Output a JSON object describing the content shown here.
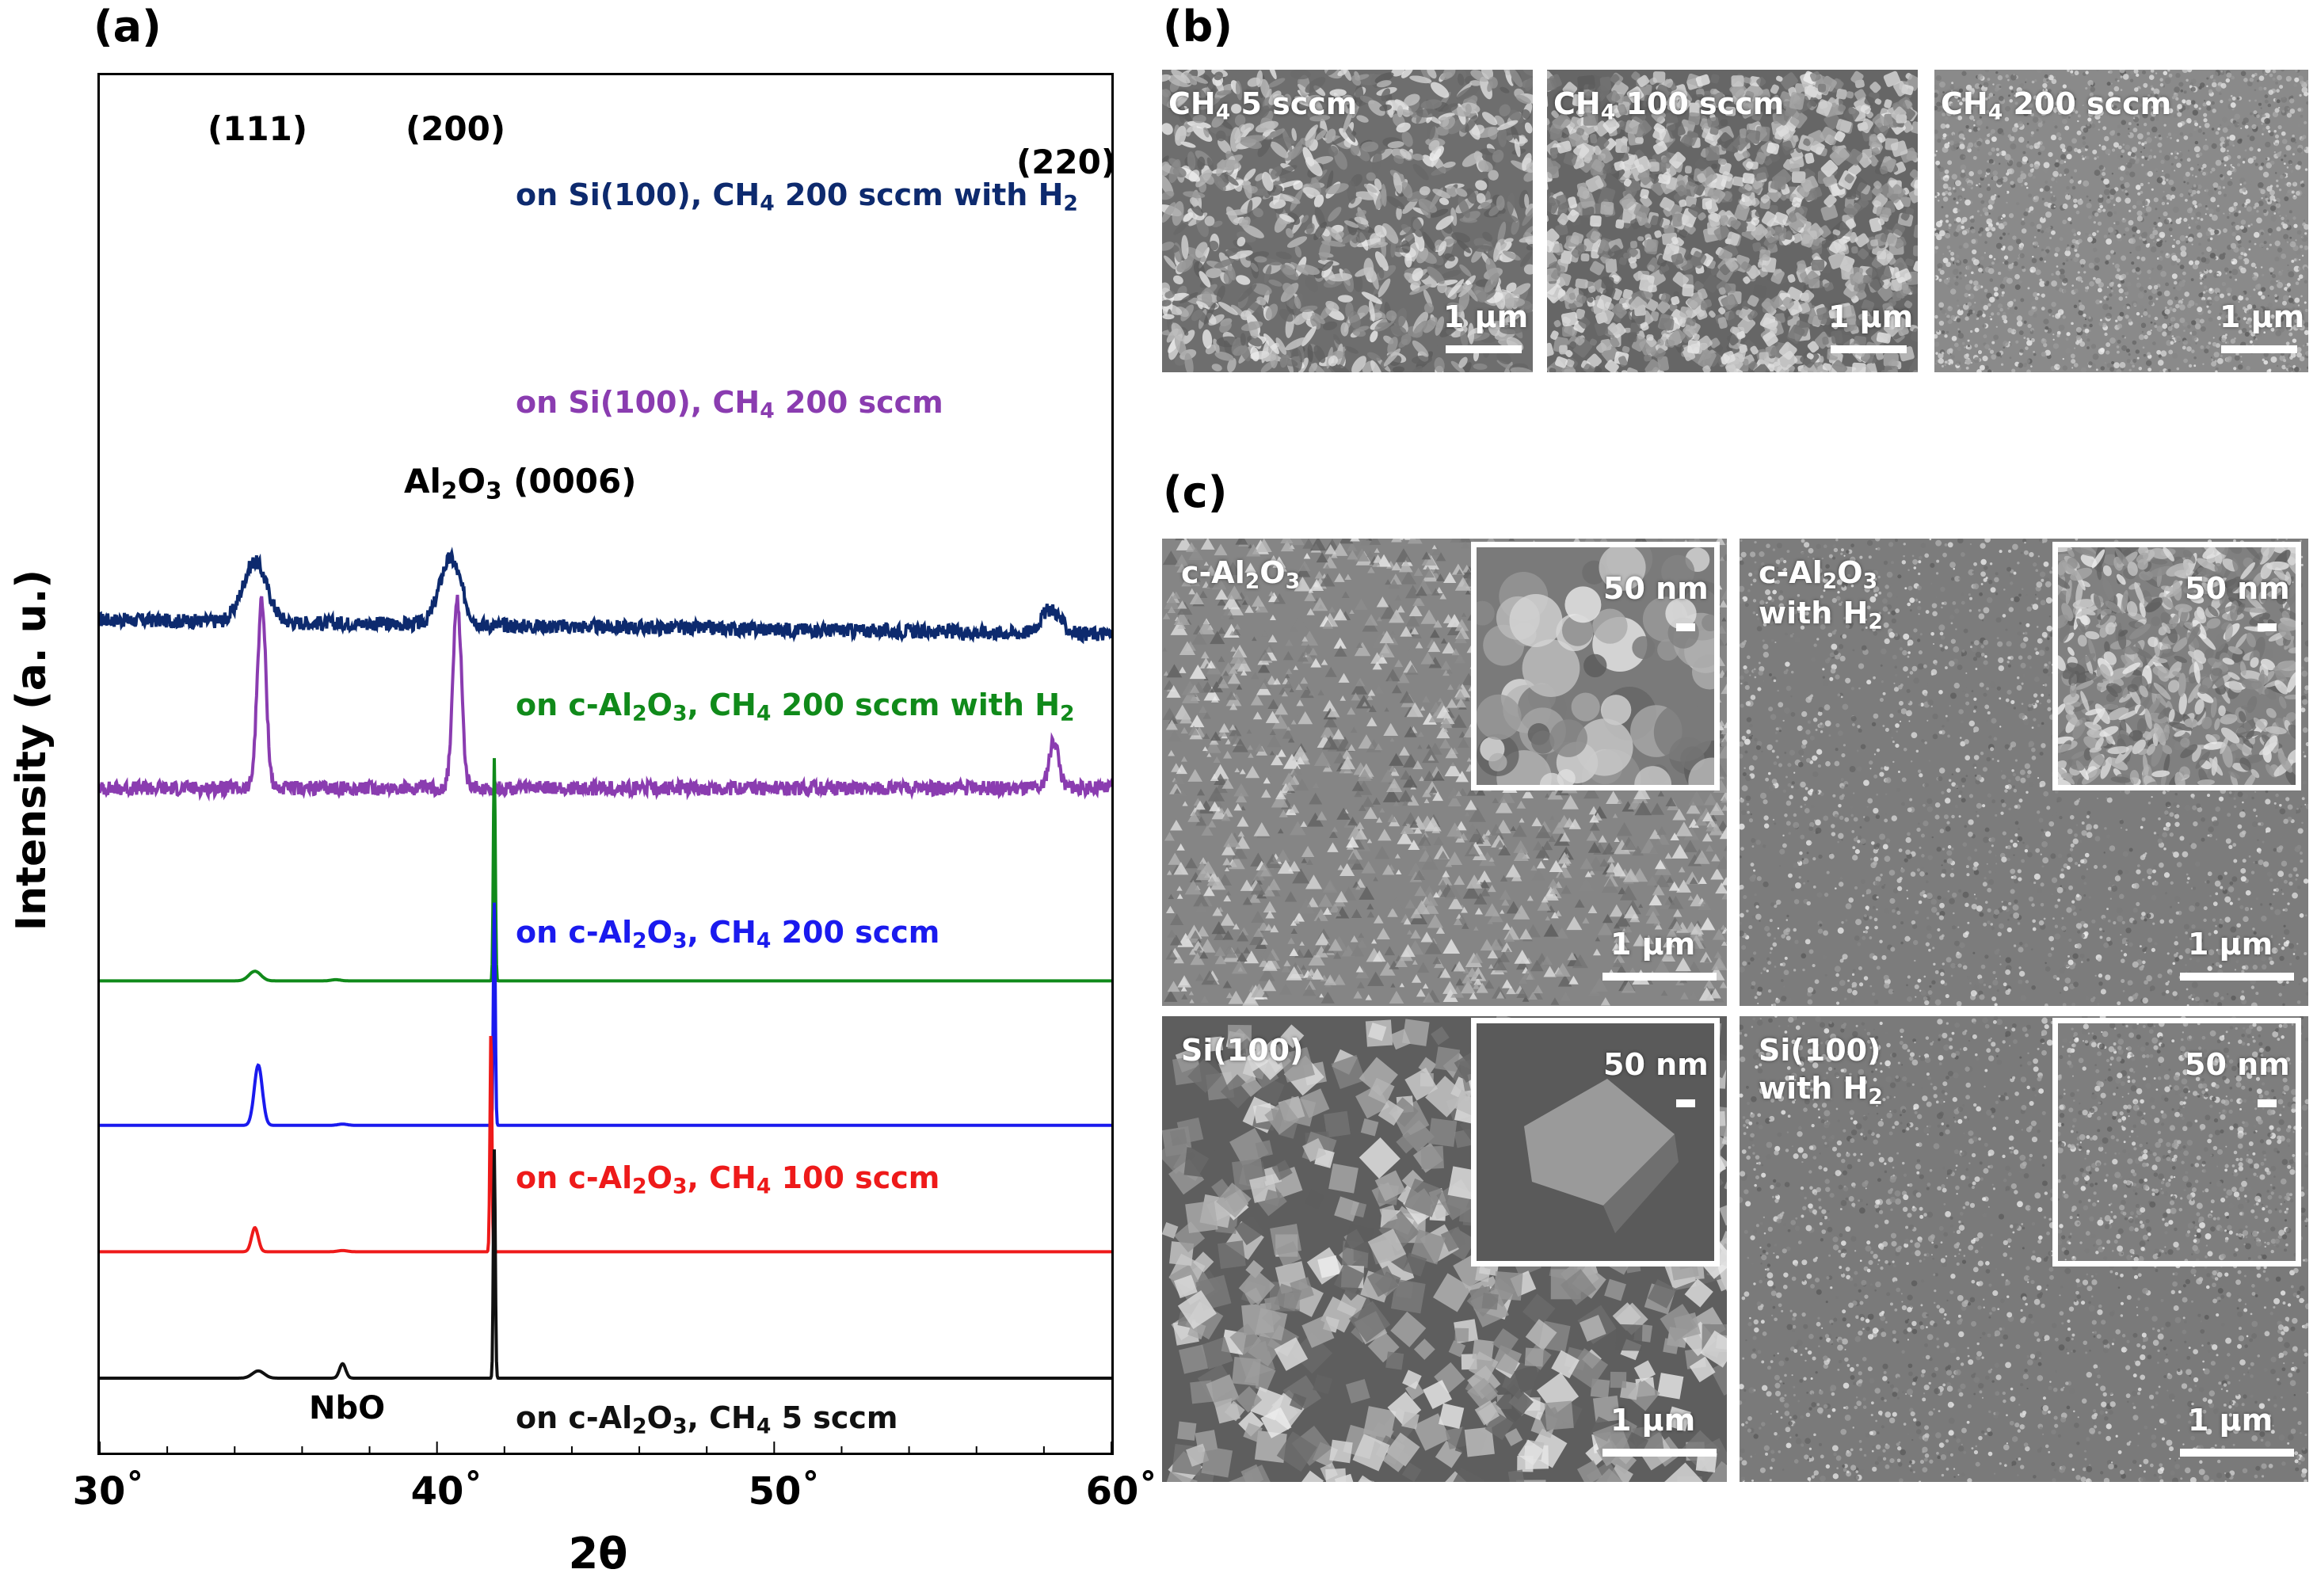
{
  "panels": {
    "a_label": "(a)",
    "b_label": "(b)",
    "c_label": "(c)"
  },
  "xrd": {
    "ylabel": "Intensity (a. u.)",
    "xlabel": "2θ",
    "xticks": [
      "30˚",
      "40˚",
      "50˚",
      "60˚"
    ],
    "peak_labels": {
      "p111": "(111)",
      "p200": "(200)",
      "p220": "(220)",
      "al2o3_main": "Al",
      "al2o3_sub1": "2",
      "al2o3_mid": "O",
      "al2o3_sub2": "3",
      "al2o3_end": " (0006)",
      "nbo": "NbO"
    },
    "trace_labels": [
      {
        "pre": "on Si(100), CH",
        "sub": "4",
        "post": " 200 sccm with H",
        "sub2": "2"
      },
      {
        "pre": "on Si(100), CH",
        "sub": "4",
        "post": " 200 sccm",
        "sub2": ""
      },
      {
        "pre": "on c-Al",
        "sub_a": "2",
        "mid": "O",
        "sub_b": "3",
        "mid2": ", CH",
        "sub": "4",
        "post": " 200 sccm with H",
        "sub2": "2"
      },
      {
        "pre": "on c-Al",
        "sub_a": "2",
        "mid": "O",
        "sub_b": "3",
        "mid2": ", CH",
        "sub": "4",
        "post": " 200 sccm",
        "sub2": ""
      },
      {
        "pre": "on c-Al",
        "sub_a": "2",
        "mid": "O",
        "sub_b": "3",
        "mid2": ", CH",
        "sub": "4",
        "post": " 100 sccm",
        "sub2": ""
      },
      {
        "pre": "on c-Al",
        "sub_a": "2",
        "mid": "O",
        "sub_b": "3",
        "mid2": ", CH",
        "sub": "4",
        "post": " 5 sccm",
        "sub2": ""
      }
    ]
  },
  "chart_data": {
    "type": "line",
    "xlabel": "2θ",
    "ylabel": "Intensity (a. u.)",
    "xlim": [
      30,
      60
    ],
    "x_tick_labels": [
      "30˚",
      "40˚",
      "50˚",
      "60˚"
    ],
    "series": [
      {
        "name": "on Si(100), CH4 200 sccm with H2",
        "color": "#0d2a6e",
        "offset": 6.3,
        "noise": 0.06,
        "peaks": [
          {
            "x": 34.6,
            "h": 0.5,
            "w": 0.5
          },
          {
            "x": 40.4,
            "h": 0.55,
            "w": 0.45
          },
          {
            "x": 58.2,
            "h": 0.2,
            "w": 0.4
          }
        ]
      },
      {
        "name": "on Si(100), CH4 200 sccm",
        "color": "#8a3cb0",
        "offset": 4.9,
        "noise": 0.06,
        "peaks": [
          {
            "x": 34.8,
            "h": 1.55,
            "w": 0.18
          },
          {
            "x": 40.6,
            "h": 1.55,
            "w": 0.18
          },
          {
            "x": 58.3,
            "h": 0.4,
            "w": 0.2
          }
        ]
      },
      {
        "name": "on c-Al2O3, CH4 200 sccm with H2",
        "color": "#108a1a",
        "offset": 3.3,
        "noise": 0.0,
        "peaks": [
          {
            "x": 34.6,
            "h": 0.08,
            "w": 0.25
          },
          {
            "x": 41.7,
            "h": 1.85,
            "w": 0.04
          },
          {
            "x": 37.0,
            "h": 0.01,
            "w": 0.2
          }
        ]
      },
      {
        "name": "on c-Al2O3, CH4 200 sccm",
        "color": "#1a1aee",
        "offset": 2.1,
        "noise": 0.0,
        "peaks": [
          {
            "x": 34.7,
            "h": 0.5,
            "w": 0.17
          },
          {
            "x": 41.7,
            "h": 1.85,
            "w": 0.04
          },
          {
            "x": 37.2,
            "h": 0.01,
            "w": 0.2
          }
        ]
      },
      {
        "name": "on c-Al2O3, CH4 100 sccm",
        "color": "#ee1a1a",
        "offset": 1.05,
        "noise": 0.0,
        "peaks": [
          {
            "x": 34.6,
            "h": 0.2,
            "w": 0.14
          },
          {
            "x": 41.6,
            "h": 1.85,
            "w": 0.04
          },
          {
            "x": 37.2,
            "h": 0.01,
            "w": 0.2
          }
        ]
      },
      {
        "name": "on c-Al2O3, CH4 5 sccm",
        "color": "#111111",
        "offset": 0.0,
        "noise": 0.0,
        "peaks": [
          {
            "x": 34.7,
            "h": 0.06,
            "w": 0.25
          },
          {
            "x": 37.2,
            "h": 0.12,
            "w": 0.13
          },
          {
            "x": 41.7,
            "h": 1.9,
            "w": 0.04
          }
        ]
      }
    ]
  },
  "sem_b": [
    {
      "label_pre": "CH",
      "label_sub": "4",
      "label_post": " 5 sccm",
      "scale": "1 μm"
    },
    {
      "label_pre": "CH",
      "label_sub": "4",
      "label_post": " 100 sccm",
      "scale": "1 μm"
    },
    {
      "label_pre": "CH",
      "label_sub": "4",
      "label_post": " 200 sccm",
      "scale": "1 μm"
    }
  ],
  "sem_c": [
    {
      "line1_pre": "c-Al",
      "line1_sub1": "2",
      "line1_mid": "O",
      "line1_sub2": "3",
      "line2_pre": "",
      "line2_sub": "",
      "scale": "1 μm",
      "inset_scale": "50 nm"
    },
    {
      "line1_pre": "c-Al",
      "line1_sub1": "2",
      "line1_mid": "O",
      "line1_sub2": "3",
      "line2_pre": "with H",
      "line2_sub": "2",
      "scale": "1 μm",
      "inset_scale": "50 nm"
    },
    {
      "line1_pre": "Si(100)",
      "line1_sub1": "",
      "line1_mid": "",
      "line1_sub2": "",
      "line2_pre": "",
      "line2_sub": "",
      "scale": "1 μm",
      "inset_scale": "50 nm"
    },
    {
      "line1_pre": "Si(100)",
      "line1_sub1": "",
      "line1_mid": "",
      "line1_sub2": "",
      "line2_pre": "with H",
      "line2_sub": "2",
      "scale": "1 μm",
      "inset_scale": "50 nm"
    }
  ]
}
